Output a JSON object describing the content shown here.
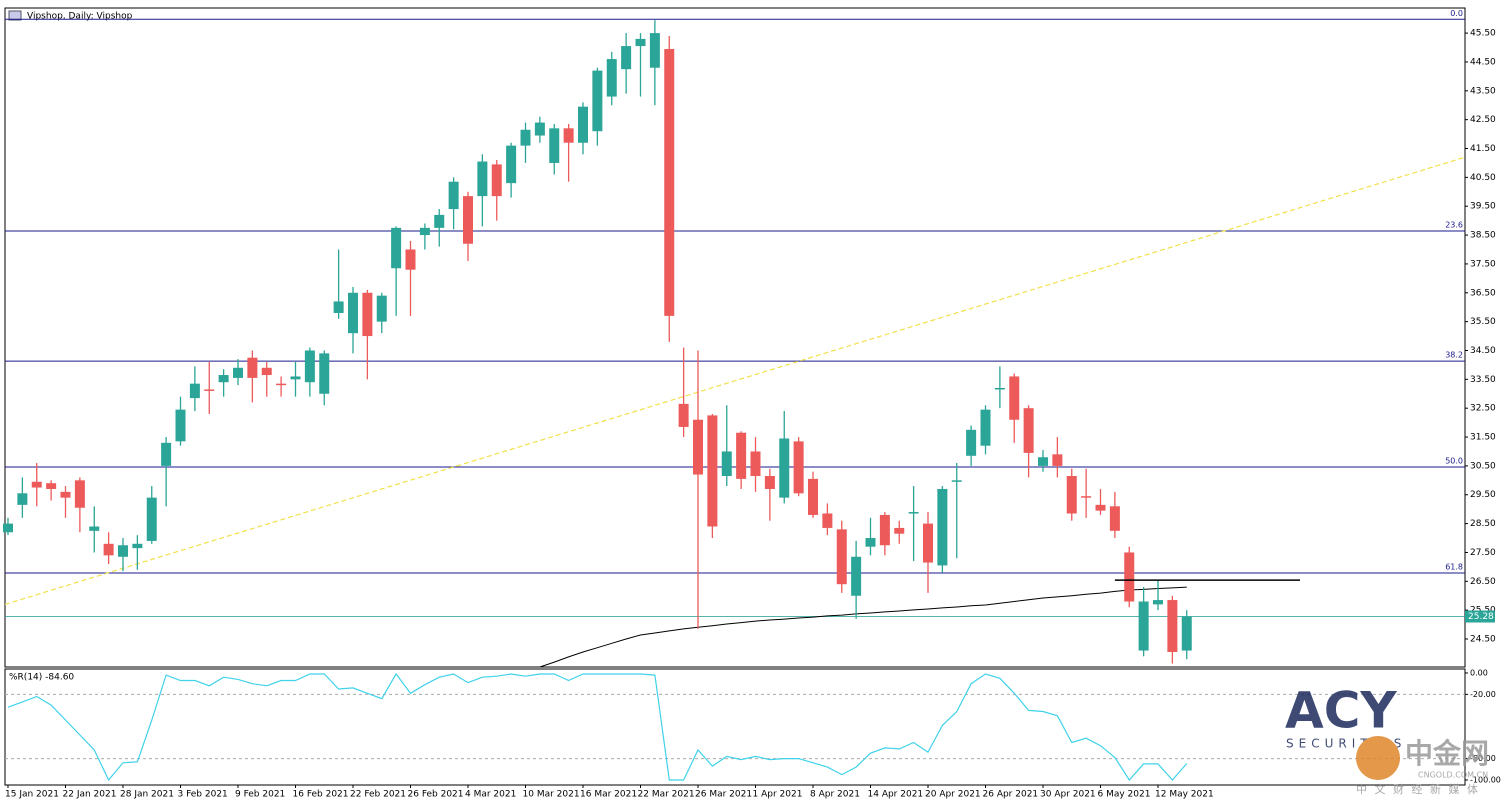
{
  "chart_data": {
    "type": "candlestick",
    "title": "Vipshop, Daily: Vipshop",
    "categories": [
      "15 Jan 2021",
      null,
      null,
      null,
      "22 Jan 2021",
      null,
      null,
      null,
      "28 Jan 2021",
      null,
      null,
      null,
      "3 Feb 2021",
      null,
      null,
      null,
      "9 Feb 2021",
      null,
      null,
      null,
      "16 Feb 2021",
      null,
      null,
      null,
      "22 Feb 2021",
      null,
      null,
      null,
      "26 Feb 2021",
      null,
      null,
      null,
      "4 Mar 2021",
      null,
      null,
      null,
      "10 Mar 2021",
      null,
      null,
      null,
      "16 Mar 2021",
      null,
      null,
      null,
      "22 Mar 2021",
      null,
      null,
      null,
      "26 Mar 2021",
      null,
      null,
      null,
      "1 Apr 2021",
      null,
      null,
      null,
      "8 Apr 2021",
      null,
      null,
      null,
      "14 Apr 2021",
      null,
      null,
      null,
      "20 Apr 2021",
      null,
      null,
      null,
      "26 Apr 2021",
      null,
      null,
      null,
      "30 Apr 2021",
      null,
      null,
      null,
      "6 May 2021",
      null,
      null,
      null,
      "12 May 2021",
      null,
      null
    ],
    "open": [
      28.2,
      29.15,
      29.95,
      29.9,
      29.6,
      30.0,
      28.25,
      27.8,
      27.35,
      27.65,
      27.9,
      30.5,
      31.35,
      32.85,
      33.15,
      33.4,
      33.55,
      34.25,
      33.9,
      33.35,
      33.5,
      33.4,
      33.0,
      35.8,
      35.1,
      36.5,
      35.5,
      37.35,
      38.0,
      38.5,
      38.75,
      39.4,
      39.85,
      39.85,
      40.95,
      40.3,
      41.6,
      41.95,
      41.0,
      42.2,
      41.7,
      42.1,
      43.3,
      44.25,
      45.05,
      44.3,
      44.95,
      32.65,
      32.1,
      32.25,
      30.15,
      31.65,
      31.0,
      30.15,
      29.4,
      31.35,
      30.05,
      28.85,
      28.3,
      26.0,
      27.7,
      28.8,
      28.35,
      28.85,
      28.5,
      27.05,
      29.95,
      30.85,
      31.2,
      33.15,
      33.6,
      32.5,
      30.5,
      30.9,
      30.15,
      29.45,
      29.15,
      29.1,
      27.5,
      24.1,
      25.7,
      25.85,
      24.1
    ],
    "high": [
      28.7,
      30.1,
      30.6,
      30.0,
      29.8,
      30.1,
      29.1,
      28.2,
      28.0,
      28.1,
      29.8,
      31.5,
      32.9,
      33.95,
      34.1,
      33.85,
      34.2,
      34.5,
      34.1,
      33.6,
      34.1,
      34.6,
      34.5,
      38.0,
      36.7,
      36.6,
      36.5,
      38.8,
      38.3,
      38.9,
      39.4,
      40.5,
      40.0,
      41.3,
      41.1,
      41.7,
      42.4,
      42.6,
      42.35,
      42.35,
      43.1,
      44.3,
      44.85,
      45.5,
      45.5,
      45.95,
      45.4,
      34.6,
      34.5,
      32.3,
      32.6,
      31.7,
      31.5,
      30.4,
      32.4,
      31.5,
      30.3,
      29.2,
      28.6,
      27.9,
      28.7,
      28.9,
      28.6,
      29.8,
      28.9,
      29.8,
      30.6,
      31.9,
      32.6,
      33.95,
      33.7,
      32.6,
      31.05,
      31.5,
      30.4,
      30.4,
      29.7,
      29.6,
      27.7,
      26.3,
      26.55,
      26.0,
      25.5
    ],
    "low": [
      28.1,
      28.7,
      29.1,
      29.3,
      28.7,
      28.2,
      27.5,
      27.1,
      26.85,
      26.9,
      27.8,
      29.1,
      31.2,
      32.4,
      32.3,
      32.9,
      33.3,
      32.7,
      32.9,
      32.9,
      32.9,
      32.9,
      32.6,
      35.6,
      34.4,
      33.5,
      35.1,
      35.7,
      35.7,
      38.0,
      38.1,
      38.7,
      37.6,
      38.8,
      39.0,
      39.8,
      41.0,
      41.7,
      40.6,
      40.35,
      41.3,
      41.6,
      43.0,
      43.4,
      43.3,
      43.0,
      34.8,
      31.5,
      24.85,
      28.0,
      29.8,
      29.7,
      29.6,
      28.6,
      29.2,
      29.45,
      28.7,
      28.1,
      26.1,
      25.2,
      27.4,
      27.4,
      27.8,
      27.2,
      26.1,
      26.8,
      27.3,
      30.5,
      30.9,
      32.5,
      31.3,
      30.1,
      30.3,
      30.1,
      28.6,
      28.7,
      28.8,
      28.0,
      25.6,
      23.9,
      25.5,
      23.65,
      23.8
    ],
    "close": [
      28.5,
      29.55,
      29.75,
      29.7,
      29.4,
      29.05,
      28.4,
      27.4,
      27.75,
      27.8,
      29.4,
      31.3,
      32.45,
      33.35,
      33.1,
      33.65,
      33.9,
      33.55,
      33.65,
      33.3,
      33.6,
      34.5,
      34.4,
      36.2,
      36.5,
      35.0,
      36.4,
      38.75,
      37.3,
      38.75,
      39.2,
      40.35,
      38.2,
      41.05,
      39.85,
      41.6,
      42.15,
      42.4,
      42.2,
      41.7,
      42.95,
      44.2,
      44.6,
      45.05,
      45.3,
      45.5,
      35.7,
      31.85,
      30.2,
      28.4,
      31.0,
      30.05,
      30.15,
      29.7,
      31.45,
      29.55,
      28.8,
      28.35,
      26.4,
      27.35,
      28.0,
      27.75,
      28.15,
      28.9,
      27.15,
      29.7,
      30.0,
      31.75,
      32.45,
      33.2,
      32.1,
      30.95,
      30.8,
      30.5,
      28.85,
      29.4,
      28.95,
      28.25,
      25.8,
      25.8,
      25.85,
      24.05,
      25.28
    ],
    "up_color": "#2aa597",
    "down_color": "#ec5a5a",
    "ma": [
      null,
      null,
      null,
      null,
      null,
      null,
      null,
      null,
      null,
      null,
      null,
      null,
      null,
      null,
      null,
      null,
      null,
      null,
      null,
      null,
      null,
      null,
      null,
      null,
      null,
      null,
      null,
      null,
      null,
      null,
      null,
      null,
      null,
      null,
      null,
      null,
      null,
      23.53,
      23.7,
      23.88,
      24.05,
      24.2,
      24.35,
      24.5,
      24.64,
      24.71,
      24.78,
      24.85,
      24.91,
      24.96,
      25.02,
      25.07,
      25.12,
      25.16,
      25.19,
      25.23,
      25.26,
      25.3,
      25.33,
      25.37,
      25.4,
      25.44,
      25.47,
      25.51,
      25.54,
      25.58,
      25.61,
      25.65,
      25.68,
      25.74,
      25.8,
      25.86,
      25.92,
      25.96,
      26.0,
      26.05,
      26.09,
      26.15,
      26.2,
      26.22,
      26.25,
      26.27,
      26.3
    ],
    "ma_color": "#000000",
    "ylim": [
      23.53,
      46.37
    ],
    "yticks": [
      {
        "value": 24.5,
        "label": "24.50"
      },
      {
        "value": 25.5,
        "label": "25.50"
      },
      {
        "value": 26.5,
        "label": "26.50"
      },
      {
        "value": 27.5,
        "label": "27.50"
      },
      {
        "value": 28.5,
        "label": "28.50"
      },
      {
        "value": 29.5,
        "label": "29.50"
      },
      {
        "value": 30.5,
        "label": "30.50"
      },
      {
        "value": 31.5,
        "label": "31.50"
      },
      {
        "value": 32.5,
        "label": "32.50"
      },
      {
        "value": 33.5,
        "label": "33.50"
      },
      {
        "value": 34.5,
        "label": "34.50"
      },
      {
        "value": 35.5,
        "label": "35.50"
      },
      {
        "value": 36.5,
        "label": "36.50"
      },
      {
        "value": 37.5,
        "label": "37.50"
      },
      {
        "value": 38.5,
        "label": "38.50"
      },
      {
        "value": 39.5,
        "label": "39.50"
      },
      {
        "value": 40.5,
        "label": "40.50"
      },
      {
        "value": 41.5,
        "label": "41.50"
      },
      {
        "value": 42.5,
        "label": "42.50"
      },
      {
        "value": 43.5,
        "label": "43.50"
      },
      {
        "value": 44.5,
        "label": "44.50"
      },
      {
        "value": 45.5,
        "label": "45.50"
      }
    ],
    "last_price": 25.28,
    "last_price_color": "#2aa597",
    "fib_levels": [
      {
        "value": 45.98,
        "label": "0.0"
      },
      {
        "value": 38.64,
        "label": "23.6"
      },
      {
        "value": 34.13,
        "label": "38.2"
      },
      {
        "value": 30.46,
        "label": "50.0"
      },
      {
        "value": 26.79,
        "label": "61.8"
      }
    ],
    "fib_color": "#1a1a8c",
    "hline_segment": 26.54,
    "trendline": {
      "start": 25.7,
      "end": 41.2,
      "color": "#f2e04a"
    }
  },
  "indicator": {
    "type": "line",
    "title": "%R(14) -84.60",
    "color": "#3fd2ea",
    "values": [
      -32,
      -27,
      -22,
      -30,
      -44,
      -58,
      -72,
      -100,
      -84,
      -83,
      -44,
      -2,
      -7,
      -7,
      -12,
      -4,
      -6,
      -10,
      -12,
      -7,
      -7,
      -1,
      -1,
      -15,
      -14,
      -19,
      -24,
      -1,
      -19,
      -11,
      -4,
      -1,
      -9,
      -4,
      -3,
      -1,
      -3,
      -1,
      -1,
      -7,
      -1,
      -1,
      -1,
      -1,
      -1,
      -2,
      -100,
      -100,
      -72,
      -87,
      -78,
      -81,
      -78,
      -81,
      -80,
      -80,
      -84,
      -88,
      -95,
      -88,
      -75,
      -70,
      -71,
      -65,
      -74,
      -49,
      -36,
      -10,
      -1,
      -5,
      -19,
      -35,
      -36,
      -40,
      -65,
      -61,
      -68,
      -79,
      -100,
      -85,
      -85,
      -100,
      -84.6
    ],
    "ylim": [
      -104.7,
      3.7
    ],
    "yticks": [
      {
        "value": 0,
        "label": "0.00"
      },
      {
        "value": -20,
        "label": "-20.00"
      },
      {
        "value": -80,
        "label": "-80.00"
      },
      {
        "value": -100,
        "label": "-100.00"
      }
    ],
    "levels": [
      -20,
      -80
    ]
  },
  "watermark": {
    "logo": "ACY",
    "tagline": "SECURITIES",
    "site": "中金网",
    "url": "CNGOLD.COM.CN",
    "slogan": "中 文 财 经 新 媒 体"
  }
}
